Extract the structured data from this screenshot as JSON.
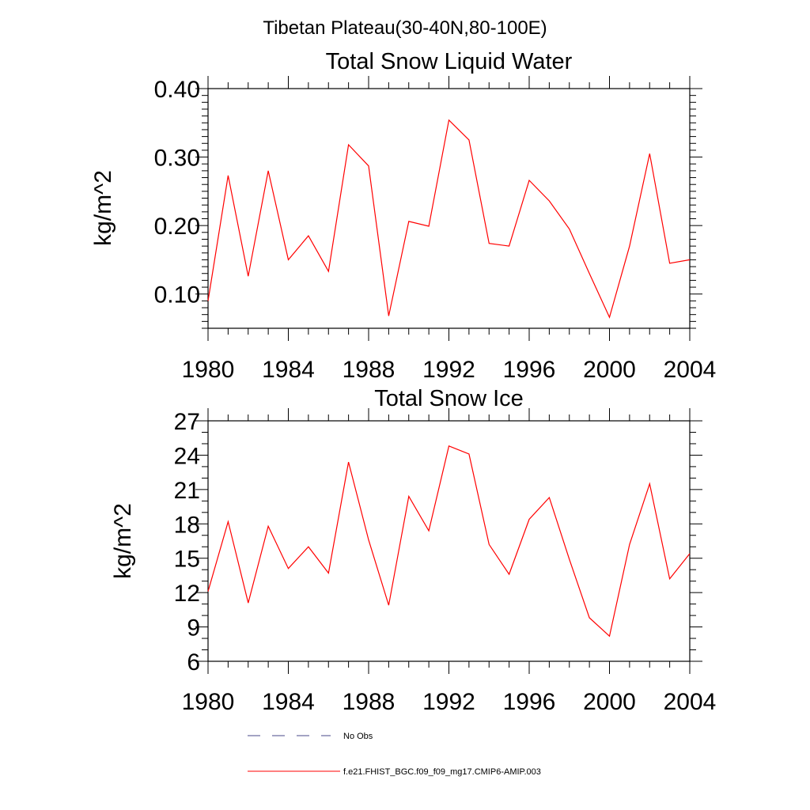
{
  "figure": {
    "suptitle": "Tibetan Plateau(30-40N,80-100E)"
  },
  "legend": {
    "placement": "bottom-left",
    "entries": [
      {
        "label": "No Obs",
        "color": "#4a4a8a",
        "style": "dashed"
      },
      {
        "label": "f.e21.FHIST_BGC.f09_f09_mg17.CMIP6-AMIP.003",
        "color": "#ff0000",
        "style": "solid"
      }
    ]
  },
  "chart_data": [
    {
      "type": "line",
      "title": "Total Snow Liquid Water",
      "xlabel": "",
      "ylabel": "kg/m^2",
      "xlim": [
        1980,
        2004
      ],
      "ylim": [
        0.05,
        0.4
      ],
      "xticks": [
        1980,
        1984,
        1988,
        1992,
        1996,
        2000,
        2004
      ],
      "yticks": [
        0.1,
        0.2,
        0.3,
        0.4
      ],
      "ytick_labels": [
        "0.10",
        "0.20",
        "0.30",
        "0.40"
      ],
      "grid": false,
      "x": [
        1980,
        1981,
        1982,
        1983,
        1984,
        1985,
        1986,
        1987,
        1988,
        1989,
        1990,
        1991,
        1992,
        1993,
        1994,
        1995,
        1996,
        1997,
        1998,
        1999,
        2000,
        2001,
        2002,
        2003,
        2004
      ],
      "series": [
        {
          "name": "f.e21.FHIST_BGC.f09_f09_mg17.CMIP6-AMIP.003",
          "color": "#ff0000",
          "values": [
            0.09,
            0.273,
            0.126,
            0.28,
            0.15,
            0.185,
            0.133,
            0.318,
            0.287,
            0.068,
            0.206,
            0.199,
            0.354,
            0.325,
            0.174,
            0.17,
            0.266,
            0.236,
            0.195,
            0.13,
            0.066,
            0.17,
            0.305,
            0.145,
            0.15
          ]
        }
      ]
    },
    {
      "type": "line",
      "title": "Total Snow Ice",
      "xlabel": "",
      "ylabel": "kg/m^2",
      "xlim": [
        1980,
        2004
      ],
      "ylim": [
        6,
        27
      ],
      "xticks": [
        1980,
        1984,
        1988,
        1992,
        1996,
        2000,
        2004
      ],
      "yticks": [
        6,
        9,
        12,
        15,
        18,
        21,
        24,
        27
      ],
      "ytick_labels": [
        "6",
        "9",
        "12",
        "15",
        "18",
        "21",
        "24",
        "27"
      ],
      "grid": false,
      "x": [
        1980,
        1981,
        1982,
        1983,
        1984,
        1985,
        1986,
        1987,
        1988,
        1989,
        1990,
        1991,
        1992,
        1993,
        1994,
        1995,
        1996,
        1997,
        1998,
        1999,
        2000,
        2001,
        2002,
        2003,
        2004
      ],
      "series": [
        {
          "name": "f.e21.FHIST_BGC.f09_f09_mg17.CMIP6-AMIP.003",
          "color": "#ff0000",
          "values": [
            12.1,
            18.2,
            11.1,
            17.8,
            14.1,
            16.0,
            13.7,
            23.4,
            16.6,
            10.9,
            20.4,
            17.4,
            24.8,
            24.1,
            16.2,
            13.6,
            18.4,
            20.3,
            14.9,
            9.8,
            8.2,
            16.2,
            21.5,
            13.2,
            15.4
          ]
        }
      ]
    }
  ]
}
